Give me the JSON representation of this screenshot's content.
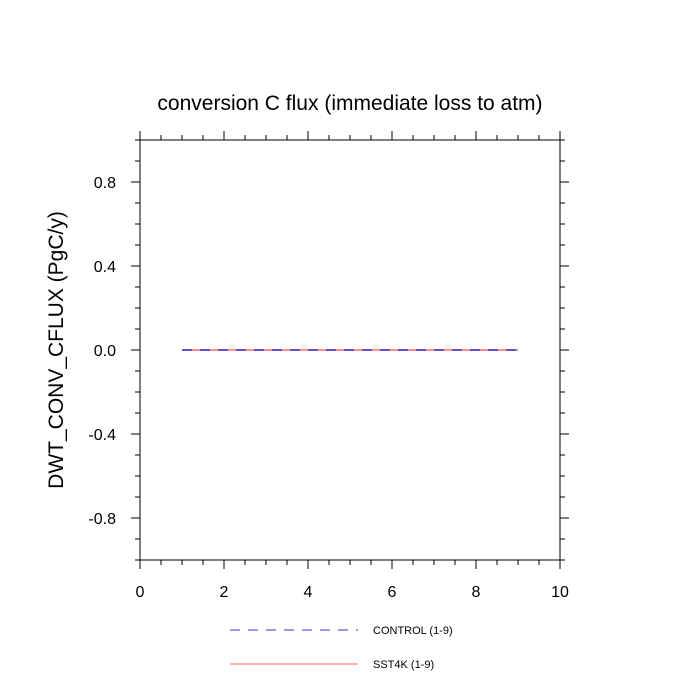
{
  "chart_data": {
    "type": "line",
    "title": "conversion C flux (immediate loss to atm)",
    "xlabel": "",
    "ylabel": "DWT_CONV_CFLUX  (PgC/y)",
    "xlim": [
      0,
      10
    ],
    "ylim": [
      -1,
      1
    ],
    "x_ticks": [
      0,
      2,
      4,
      6,
      8,
      10
    ],
    "x_tick_labels": [
      "0",
      "2",
      "4",
      "6",
      "8",
      "10"
    ],
    "y_ticks": [
      -0.8,
      -0.4,
      0.0,
      0.4,
      0.8
    ],
    "y_tick_labels": [
      "-0.8",
      "-0.4",
      "0.0",
      "0.4",
      "0.8"
    ],
    "grid": false,
    "legend_position": "bottom",
    "series": [
      {
        "name": "CONTROL (1-9)",
        "color": "#3333cc",
        "style": "dashed",
        "x": [
          1,
          2,
          3,
          4,
          5,
          6,
          7,
          8,
          9
        ],
        "values": [
          0,
          0,
          0,
          0,
          0,
          0,
          0,
          0,
          0
        ]
      },
      {
        "name": "SST4K (1-9)",
        "color": "#ff6666",
        "style": "solid",
        "x": [
          1,
          2,
          3,
          4,
          5,
          6,
          7,
          8,
          9
        ],
        "values": [
          0,
          0,
          0,
          0,
          0,
          0,
          0,
          0,
          0
        ]
      }
    ]
  }
}
